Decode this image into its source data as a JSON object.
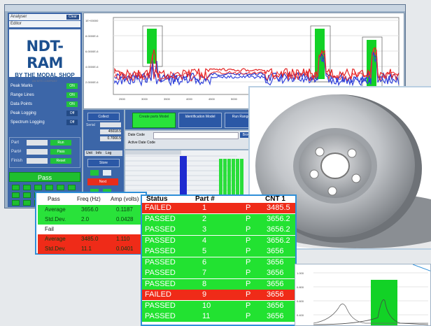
{
  "app": {
    "titlebar": "",
    "analyser": {
      "label": "Analyser",
      "btn": "Clear"
    },
    "select2": {
      "label": "Editor"
    }
  },
  "logo": {
    "big": "NDT-RAM",
    "mid": "BY THE MODAL SHOP",
    "small": "AN MTS COMPANY"
  },
  "toggles": [
    {
      "label": "Peak Marks",
      "state": "ON"
    },
    {
      "label": "Range Lines",
      "state": "ON"
    },
    {
      "label": "Data Points",
      "state": "ON"
    },
    {
      "label": "Peak Logging",
      "state": "Off"
    },
    {
      "label": "Spectrum Logging",
      "state": "Off"
    }
  ],
  "inputs": [
    {
      "label": "Part",
      "btn": "Run"
    },
    {
      "label": "Part#",
      "btn": "Pass"
    },
    {
      "label": "Finish",
      "btn": "Reset"
    }
  ],
  "pass_label": "Pass",
  "controls": {
    "title": "Collect",
    "serial": "Serial",
    "freq1": "45018.5",
    "freq2": "0.7066.5",
    "tabs": [
      "Unit",
      "Info",
      "Log"
    ],
    "store": "Store",
    "next": "Next"
  },
  "top_buttons": [
    "Create parts Model",
    "Identification Model",
    "Run Range Model"
  ],
  "mid": {
    "date_code": "Date Code",
    "active_date_code": "Active Date Code",
    "btn": "Browse"
  },
  "chart": {
    "ytick_labels": [
      "1E+00000",
      "8.0000E-6",
      "6.0000E-6",
      "4.0000E-6",
      "2.0000E-6"
    ],
    "xtick_labels": [
      "2500",
      "3000",
      "3500",
      "4000",
      "4500",
      "5000",
      "5500",
      "6000",
      "6500",
      "7000",
      "7500",
      "8000",
      "8500"
    ]
  },
  "freq_table": {
    "headers": [
      "Pass",
      "Freq (Hz)",
      "Amp (volts)"
    ],
    "rows": [
      {
        "label": "Average",
        "freq": "3656.0",
        "amp": "0.1187",
        "color": "#29e23a"
      },
      {
        "label": "Std.Dev.",
        "freq": "2.0",
        "amp": "0.0428",
        "color": "#29e23a"
      },
      {
        "label": "Fail",
        "freq": "",
        "amp": "",
        "color": "#ffffff"
      },
      {
        "label": "Average",
        "freq": "3485.0",
        "amp": "1.110",
        "color": "#ef2b18"
      },
      {
        "label": "Std.Dev.",
        "freq": "11.1",
        "amp": "0.0401",
        "color": "#ef2b18"
      }
    ]
  },
  "status_table": {
    "headers": [
      "Status",
      "Part #",
      "",
      "CNT 1"
    ],
    "rows": [
      {
        "status": "FAILED",
        "part": "1",
        "p": "P",
        "cnt": "3485.5",
        "color": "#ef2b18"
      },
      {
        "status": "PASSED",
        "part": "2",
        "p": "P",
        "cnt": "3656.2",
        "color": "#22e231"
      },
      {
        "status": "PASSED",
        "part": "3",
        "p": "P",
        "cnt": "3656.2",
        "color": "#22e231"
      },
      {
        "status": "PASSED",
        "part": "4",
        "p": "P",
        "cnt": "3656.2",
        "color": "#22e231"
      },
      {
        "status": "PASSED",
        "part": "5",
        "p": "P",
        "cnt": "3656",
        "color": "#22e231"
      },
      {
        "status": "PASSED",
        "part": "6",
        "p": "P",
        "cnt": "3656",
        "color": "#22e231"
      },
      {
        "status": "PASSED",
        "part": "7",
        "p": "P",
        "cnt": "3656",
        "color": "#22e231"
      },
      {
        "status": "PASSED",
        "part": "8",
        "p": "P",
        "cnt": "3656",
        "color": "#22e231"
      },
      {
        "status": "FAILED",
        "part": "9",
        "p": "P",
        "cnt": "3656",
        "color": "#ef2b18"
      },
      {
        "status": "PASSED",
        "part": "10",
        "p": "P",
        "cnt": "3656",
        "color": "#22e231"
      },
      {
        "status": "PASSED",
        "part": "11",
        "p": "P",
        "cnt": "3656",
        "color": "#22e231"
      }
    ]
  },
  "minichart": {
    "ylabels": [
      "1.000",
      "0.800",
      "0.600",
      "0.400"
    ]
  }
}
